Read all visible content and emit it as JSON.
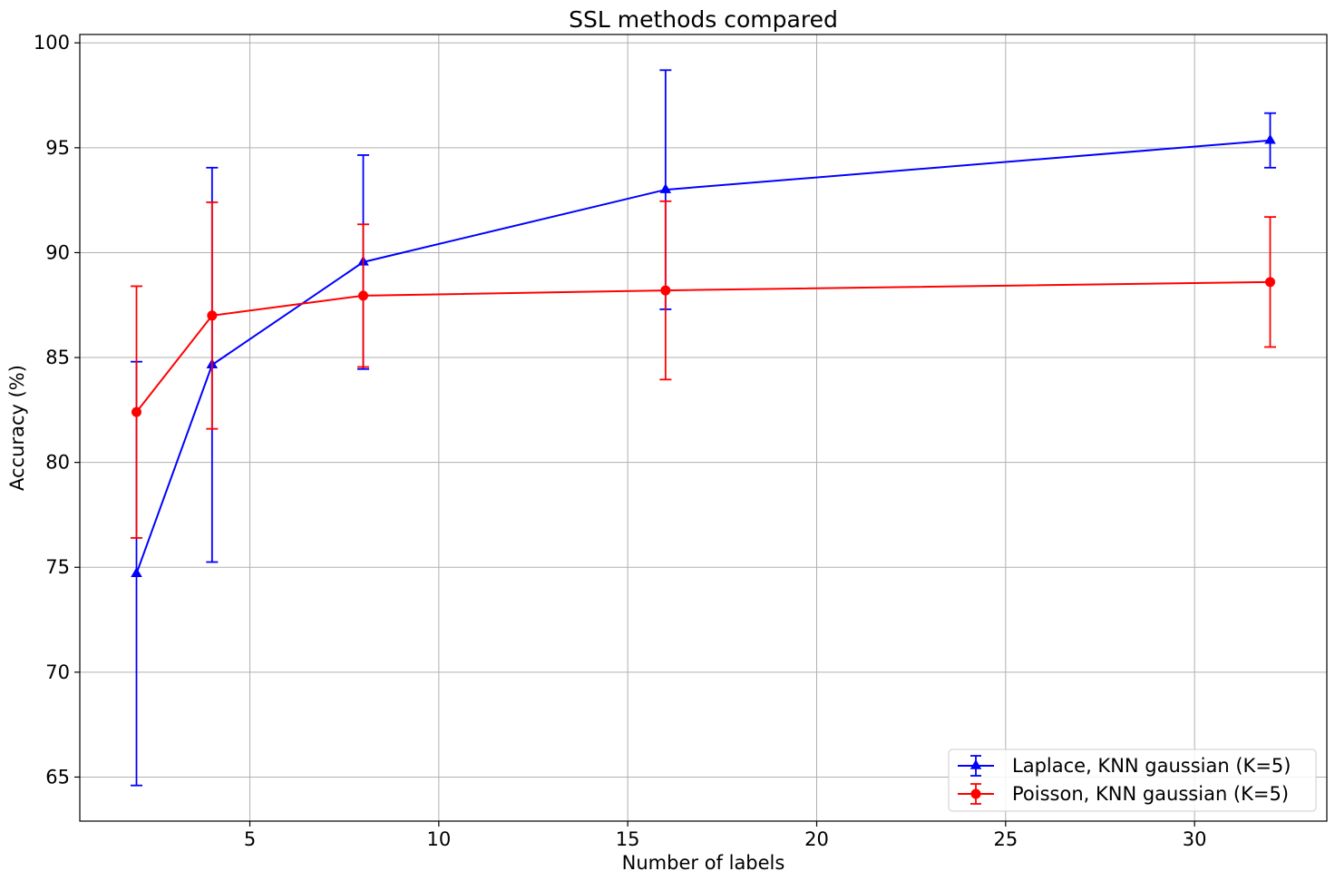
{
  "chart_data": {
    "type": "line",
    "title": "SSL methods compared",
    "xlabel": "Number of labels",
    "ylabel": "Accuracy (%)",
    "xlim": [
      0.5,
      33.5
    ],
    "ylim": [
      62.9,
      100.4
    ],
    "xticks": [
      5,
      10,
      15,
      20,
      25,
      30
    ],
    "yticks": [
      65,
      70,
      75,
      80,
      85,
      90,
      95,
      100
    ],
    "grid": true,
    "legend_position": "lower-right",
    "series": [
      {
        "name": "Laplace, KNN gaussian (K=5)",
        "color": "#0000ff",
        "marker": "triangle",
        "x": [
          2,
          4,
          8,
          16,
          32
        ],
        "y": [
          74.7,
          84.65,
          89.55,
          93.0,
          95.35
        ],
        "yerr": [
          10.1,
          9.4,
          5.1,
          5.7,
          1.3
        ]
      },
      {
        "name": "Poisson, KNN gaussian (K=5)",
        "color": "#ff0000",
        "marker": "circle",
        "x": [
          2,
          4,
          8,
          16,
          32
        ],
        "y": [
          82.4,
          87.0,
          87.95,
          88.2,
          88.6
        ],
        "yerr": [
          6.0,
          5.4,
          3.4,
          4.25,
          3.1
        ]
      }
    ]
  }
}
